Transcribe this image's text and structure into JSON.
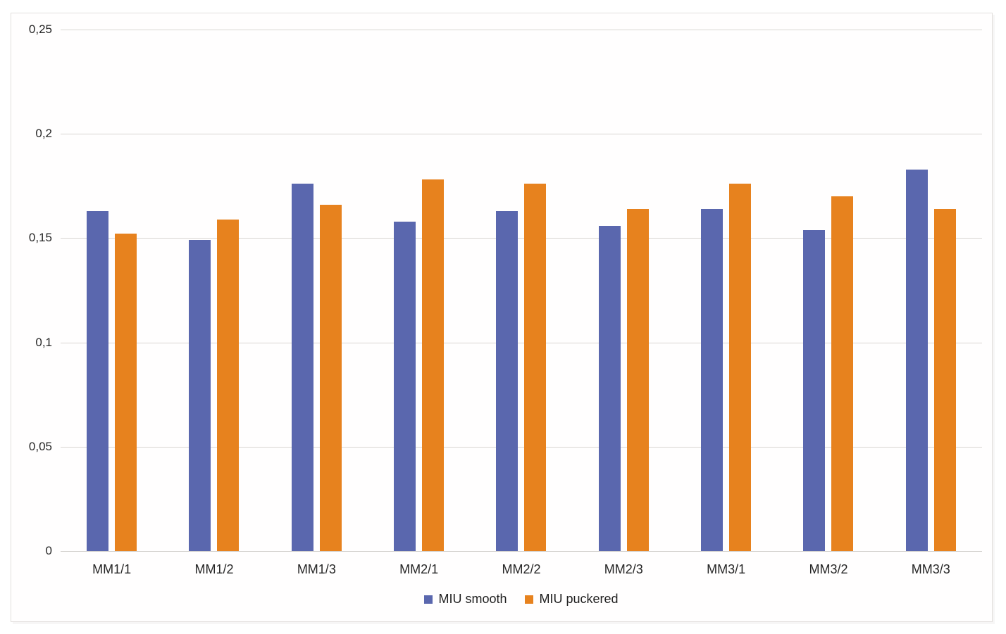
{
  "chart_data": {
    "type": "bar",
    "title": "",
    "categories": [
      "MM1/1",
      "MM1/2",
      "MM1/3",
      "MM2/1",
      "MM2/2",
      "MM2/3",
      "MM3/1",
      "MM3/2",
      "MM3/3"
    ],
    "series": [
      {
        "name": "MIU smooth",
        "color": "#5a67ae",
        "values": [
          0.163,
          0.149,
          0.176,
          0.158,
          0.163,
          0.156,
          0.164,
          0.154,
          0.183
        ]
      },
      {
        "name": "MIU puckered",
        "color": "#e7821e",
        "values": [
          0.152,
          0.159,
          0.166,
          0.178,
          0.176,
          0.164,
          0.176,
          0.17,
          0.164
        ]
      }
    ],
    "y_axis": {
      "min": 0,
      "max": 0.25,
      "tick_step": 0.05,
      "tick_labels": [
        "0",
        "0,05",
        "0,1",
        "0,15",
        "0,2",
        "0,25"
      ],
      "decimal_separator": ","
    },
    "x_axis_label": "",
    "y_axis_label": "",
    "grid": true,
    "legend_position": "bottom",
    "legend_entries": [
      "MIU smooth",
      "MIU puckered"
    ]
  },
  "colors": {
    "grid": "#d8d5d2",
    "baseline": "#ccc9c6",
    "text": "#262626",
    "frame_border": "#e2dfdd",
    "background": "#ffffff"
  }
}
